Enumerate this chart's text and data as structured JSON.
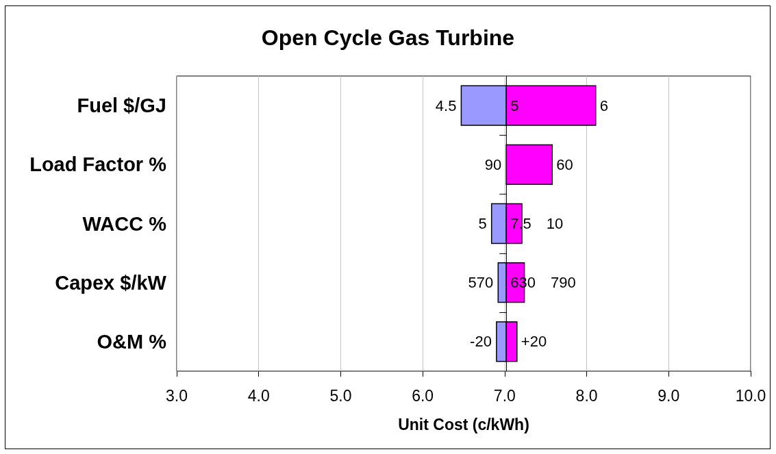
{
  "chart_data": {
    "type": "bar",
    "orientation": "horizontal",
    "title": "Open Cycle Gas Turbine",
    "xlabel": "Unit Cost (c/kWh)",
    "categories": [
      "Fuel $/GJ",
      "Load Factor %",
      "WACC %",
      "Capex $/kW",
      "O&M %"
    ],
    "series": [
      {
        "color": "#9999ff",
        "base": [
          7.02,
          null,
          7.02,
          7.02,
          7.02
        ],
        "values": [
          -0.55,
          null,
          -0.18,
          -0.1,
          -0.12
        ]
      },
      {
        "color": "#ff00ff",
        "base": [
          7.02,
          7.02,
          7.02,
          7.02,
          7.02
        ],
        "values": [
          1.09,
          0.56,
          0.19,
          0.22,
          0.13
        ]
      }
    ],
    "ref_lines": [
      {
        "axis": "x",
        "value": 7.02
      }
    ],
    "annotations": [
      {
        "text": "4.5",
        "x": 6.47,
        "y": "Fuel $/GJ"
      },
      {
        "text": "5",
        "x": 7.02,
        "y": "Fuel $/GJ"
      },
      {
        "text": "6",
        "x": 8.11,
        "y": "Fuel $/GJ"
      },
      {
        "text": "90",
        "x": 7.02,
        "y": "Load Factor %"
      },
      {
        "text": "60",
        "x": 7.58,
        "y": "Load Factor %"
      },
      {
        "text": "5",
        "x": 6.84,
        "y": "WACC %"
      },
      {
        "text": "7.5",
        "x": 7.02,
        "y": "WACC %"
      },
      {
        "text": "10",
        "x": 7.21,
        "y": "WACC %"
      },
      {
        "text": "570",
        "x": 6.92,
        "y": "Capex $/kW"
      },
      {
        "text": "630",
        "x": 7.02,
        "y": "Capex $/kW"
      },
      {
        "text": "790",
        "x": 7.24,
        "y": "Capex $/kW"
      },
      {
        "text": "-20",
        "x": 6.9,
        "y": "O&M %"
      },
      {
        "text": "+20",
        "x": 7.15,
        "y": "O&M %"
      }
    ],
    "xlim": [
      3,
      10
    ],
    "xticks": [
      {
        "value": 3,
        "label": "3.0"
      },
      {
        "value": 4,
        "label": "4.0"
      },
      {
        "value": 5,
        "label": "5.0"
      },
      {
        "value": 6,
        "label": "6.0"
      },
      {
        "value": 7,
        "label": "7.0"
      },
      {
        "value": 8,
        "label": "8.0"
      },
      {
        "value": 9,
        "label": "9.0"
      },
      {
        "value": 10,
        "label": "10.0"
      }
    ],
    "grid": "x"
  }
}
